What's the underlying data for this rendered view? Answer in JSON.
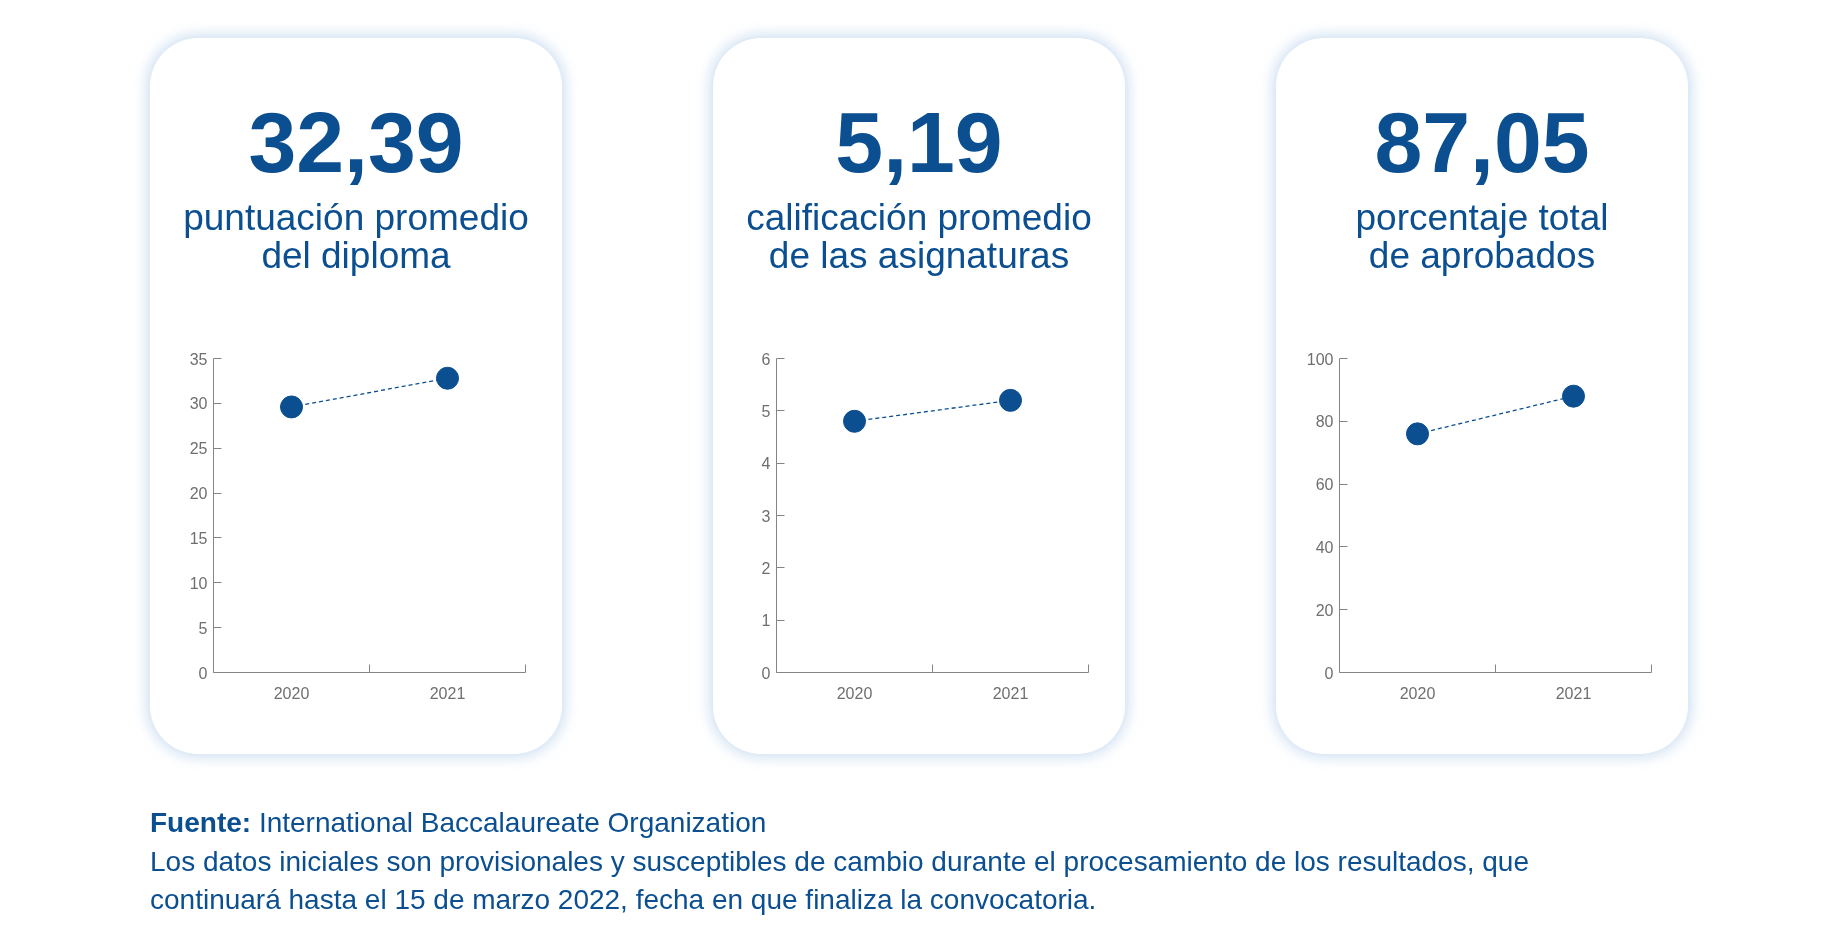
{
  "chart_data": [
    {
      "type": "line",
      "title": "32,39",
      "subtitle": "puntuación promedio del diploma",
      "categories": [
        "2020",
        "2021"
      ],
      "values": [
        29.6,
        32.8
      ],
      "color": "#0b4f91",
      "ylim": [
        0,
        35
      ],
      "yticks": [
        0,
        5,
        10,
        15,
        20,
        25,
        30,
        35
      ],
      "marker": "circle",
      "line_style": "dashed",
      "grid": false
    },
    {
      "type": "line",
      "title": "5,19",
      "subtitle": "calificación promedio de las asignaturas",
      "categories": [
        "2020",
        "2021"
      ],
      "values": [
        4.8,
        5.2
      ],
      "color": "#0b4f91",
      "ylim": [
        0,
        6
      ],
      "yticks": [
        0,
        1,
        2,
        3,
        4,
        5,
        6
      ],
      "marker": "circle",
      "line_style": "dashed",
      "grid": false
    },
    {
      "type": "line",
      "title": "87,05",
      "subtitle": "porcentaje total de aprobados",
      "categories": [
        "2020",
        "2021"
      ],
      "values": [
        76,
        88
      ],
      "color": "#0b4f91",
      "ylim": [
        0,
        100
      ],
      "yticks": [
        0,
        20,
        40,
        60,
        80,
        100
      ],
      "marker": "circle",
      "line_style": "dashed",
      "grid": false,
      "annotations": [
        "Fuente: International Baccalaureate Organization",
        "Los datos iniciales son provisionales y susceptibles de cambio durante el procesamiento de los resultados, que continuará hasta el 15 de marzo 2022, fecha en que finaliza la convocatoria."
      ]
    }
  ]
}
